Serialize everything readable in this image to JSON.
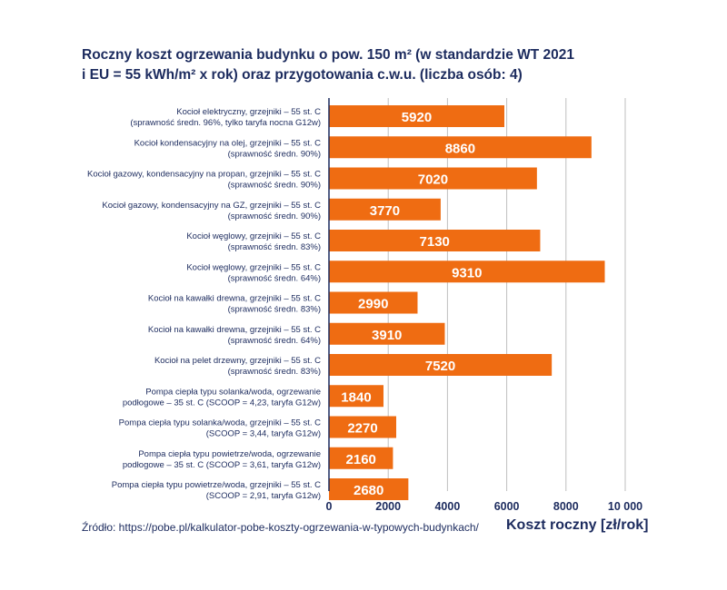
{
  "title_line1": "Roczny koszt ogrzewania budynku o pow. 150 m² (w standardzie WT 2021",
  "title_line2": "i EU = 55 kWh/m² x rok) oraz przygotowania c.w.u. (liczba osób: 4)",
  "source": "Źródło: https://pobe.pl/kalkulator-pobe-koszty-ogrzewania-w-typowych-budynkach/",
  "colors": {
    "bar": "#ef6c12",
    "text": "#1c2b5e",
    "grid": "#bfbfbf",
    "axis": "#1c2b5e",
    "label": "#ffffff"
  },
  "chart_data": {
    "type": "bar",
    "orientation": "horizontal",
    "title": "Roczny koszt ogrzewania budynku o pow. 150 m² (w standardzie WT 2021 i EU = 55 kWh/m² x rok) oraz przygotowania c.w.u. (liczba osób: 4)",
    "xlabel": "Koszt roczny [zł/rok]",
    "ylabel": "",
    "xlim": [
      0,
      10000
    ],
    "xticks": [
      0,
      2000,
      4000,
      6000,
      8000,
      10000
    ],
    "xtick_labels": [
      "0",
      "2000",
      "4000",
      "6000",
      "8000",
      "10 000"
    ],
    "grid": "vertical",
    "categories": [
      [
        "Kocioł elektryczny, grzejniki – 55 st. C",
        "(sprawność średn. 96%, tylko taryfa nocna G12w)"
      ],
      [
        "Kocioł kondensacyjny na olej, grzejniki – 55 st. C",
        "(sprawność średn. 90%)"
      ],
      [
        "Kocioł gazowy, kondensacyjny na propan, grzejniki – 55 st. C",
        "(sprawność średn. 90%)"
      ],
      [
        "Kocioł gazowy, kondensacyjny na GZ, grzejniki – 55 st. C",
        "(sprawność średn. 90%)"
      ],
      [
        "Kocioł węglowy, grzejniki – 55 st. C",
        "(sprawność średn. 83%)"
      ],
      [
        "Kocioł węglowy, grzejniki – 55 st. C",
        "(sprawność średn. 64%)"
      ],
      [
        "Kocioł na kawałki drewna, grzejniki – 55 st. C",
        "(sprawność średn. 83%)"
      ],
      [
        "Kocioł na kawałki drewna, grzejniki – 55 st. C",
        "(sprawność średn. 64%)"
      ],
      [
        "Kocioł na pelet drzewny, grzejniki – 55 st. C",
        "(sprawność średn. 83%)"
      ],
      [
        "Pompa ciepła typu solanka/woda, ogrzewanie",
        "podłogowe – 35 st. C (SCOOP = 4,23, taryfa G12w)"
      ],
      [
        "Pompa ciepła typu solanka/woda, grzejniki – 55 st. C",
        "(SCOOP = 3,44, taryfa G12w)"
      ],
      [
        "Pompa ciepła typu powietrze/woda, ogrzewanie",
        "podłogowe – 35 st. C (SCOOP = 3,61, taryfa G12w)"
      ],
      [
        "Pompa ciepła typu powietrze/woda, grzejniki – 55 st. C",
        "(SCOOP = 2,91, taryfa G12w)"
      ]
    ],
    "values": [
      5920,
      8860,
      7020,
      3770,
      7130,
      9310,
      2990,
      3910,
      7520,
      1840,
      2270,
      2160,
      2680
    ]
  }
}
